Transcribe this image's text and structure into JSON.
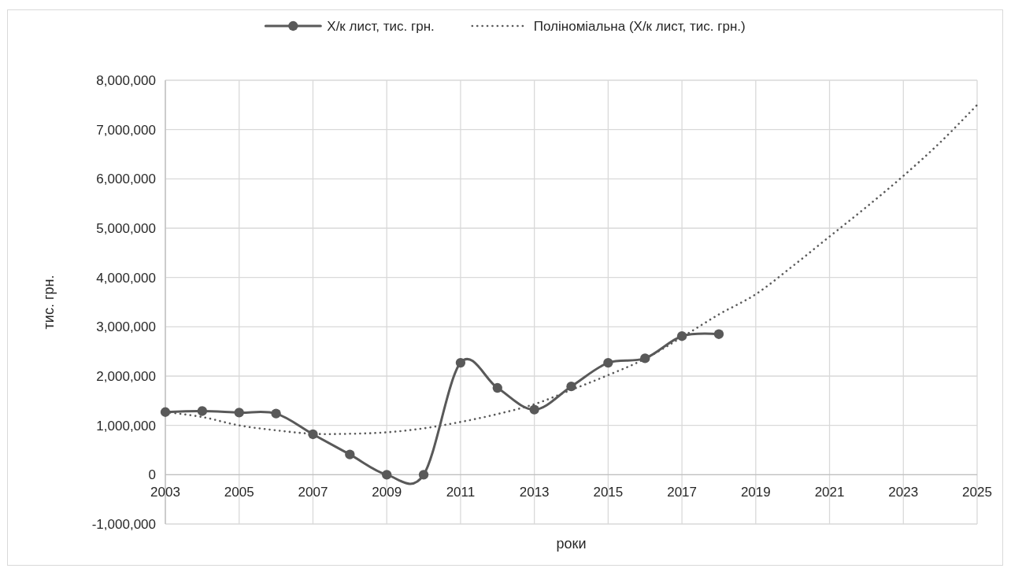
{
  "chart_data": {
    "type": "line",
    "xlabel": "роки",
    "ylabel": "тис. грн.",
    "xlim": [
      2003,
      2025
    ],
    "xticks": [
      2003,
      2005,
      2007,
      2009,
      2011,
      2013,
      2015,
      2017,
      2019,
      2021,
      2023,
      2025
    ],
    "ylim": [
      -1000000,
      8000000
    ],
    "yticks": [
      {
        "value": -1000000,
        "label": "-1,000,000"
      },
      0,
      {
        "value": 1000000,
        "label": "1,000,000"
      },
      {
        "value": 2000000,
        "label": "2,000,000"
      },
      {
        "value": 3000000,
        "label": "3,000,000"
      },
      {
        "value": 4000000,
        "label": "4,000,000"
      },
      {
        "value": 5000000,
        "label": "5,000,000"
      },
      {
        "value": 6000000,
        "label": "6,000,000"
      },
      {
        "value": 7000000,
        "label": "7,000,000"
      },
      {
        "value": 8000000,
        "label": "8,000,000"
      }
    ],
    "grid": true,
    "legend": "top",
    "marker": "circle",
    "line_style": "solid",
    "x": [
      2003,
      2004,
      2005,
      2006,
      2007,
      2008,
      2009,
      2010,
      2011,
      2012,
      2013,
      2014,
      2015,
      2016,
      2017,
      2018
    ],
    "series": [
      {
        "name": "Х/к лист, тис. грн.",
        "color": "#595959",
        "values": [
          1270000,
          1290000,
          1260000,
          1240000,
          820000,
          410000,
          0,
          0,
          2270000,
          1760000,
          1320000,
          1790000,
          2270000,
          2360000,
          2810000,
          2850000
        ]
      },
      {
        "name": "Поліноміальна (Х/к лист, тис. грн.)",
        "color": "#595959",
        "type": "line",
        "line_style": "dotted",
        "marker": "none",
        "x": [
          2003,
          2004,
          2005,
          2006,
          2007,
          2008,
          2009,
          2010,
          2011,
          2012,
          2013,
          2014,
          2015,
          2016,
          2017,
          2018,
          2019,
          2020,
          2021,
          2022,
          2023,
          2024,
          2025
        ],
        "values": [
          1270000,
          1170000,
          1000000,
          900000,
          830000,
          830000,
          860000,
          940000,
          1070000,
          1230000,
          1430000,
          1720000,
          2020000,
          2350000,
          2790000,
          3250000,
          3660000,
          4230000,
          4830000,
          5430000,
          6060000,
          6740000,
          7500000
        ]
      }
    ]
  }
}
